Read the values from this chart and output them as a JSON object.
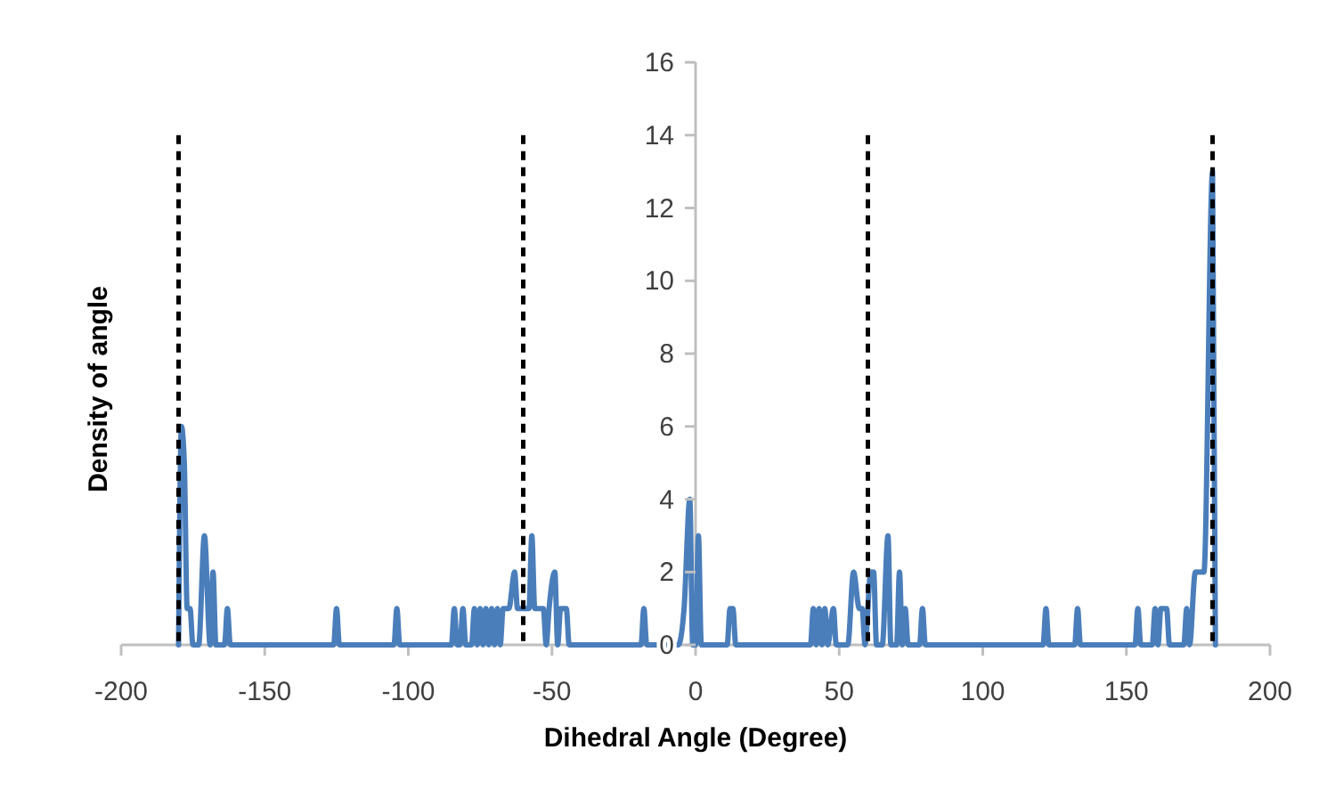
{
  "chart_data": {
    "type": "line",
    "xlabel": "Dihedral Angle (Degree)",
    "ylabel": "Density of angle",
    "xlim": [
      -200,
      200
    ],
    "xticks": [
      -200,
      -150,
      -100,
      -50,
      0,
      50,
      100,
      150,
      200
    ],
    "ylim": [
      0,
      16
    ],
    "yticks": [
      0,
      2,
      4,
      6,
      8,
      10,
      12,
      14,
      16
    ],
    "grid": false,
    "marker": "none",
    "line_style": "solid",
    "series": [
      {
        "color": "#4a7ebb",
        "x": [
          -180,
          -179,
          -178,
          -177,
          -176,
          -175,
          -173,
          -171,
          -169,
          -168,
          -167,
          -164,
          -163,
          -162,
          -126,
          -125,
          -124,
          -105,
          -104,
          -103,
          -85,
          -84,
          -83,
          -82,
          -81,
          -80,
          -78,
          -77,
          -76,
          -75,
          -74,
          -73,
          -72,
          -71,
          -70,
          -69,
          -68,
          -67,
          -66,
          -65,
          -63,
          -62,
          -60,
          -58,
          -57,
          -56,
          -53,
          -52,
          -51,
          -49,
          -48,
          -47,
          -46,
          -45,
          -44,
          -19,
          -18,
          -17,
          -6,
          -4,
          -2,
          -1,
          0,
          1,
          2,
          11,
          12,
          13,
          14,
          40,
          41,
          42,
          43,
          44,
          45,
          46,
          48,
          49,
          53,
          55,
          57,
          58,
          59,
          61,
          62,
          63,
          65,
          67,
          68,
          70,
          71,
          72,
          73,
          74,
          78,
          79,
          80,
          121,
          122,
          123,
          132,
          133,
          134,
          153,
          154,
          155,
          159,
          160,
          161,
          162,
          164,
          165,
          170,
          171,
          172,
          174,
          176,
          177,
          180,
          181
        ],
        "values": [
          0,
          6,
          5,
          1,
          1,
          0,
          0,
          3,
          0,
          2,
          0,
          0,
          1,
          0,
          0,
          1,
          0,
          0,
          1,
          0,
          0,
          1,
          0,
          0,
          1,
          0,
          0,
          1,
          0,
          1,
          0,
          1,
          0,
          1,
          0,
          1,
          0,
          1,
          1,
          1,
          2,
          1,
          1,
          1,
          3,
          1,
          1,
          0,
          1,
          2,
          0,
          1,
          1,
          1,
          0,
          0,
          1,
          0,
          0,
          1,
          4,
          0,
          0,
          3,
          0,
          0,
          1,
          1,
          0,
          0,
          1,
          0,
          1,
          0,
          1,
          0,
          1,
          0,
          0,
          2,
          1,
          1,
          0,
          2,
          2,
          0,
          0,
          3,
          0,
          0,
          2,
          0,
          1,
          0,
          0,
          1,
          0,
          0,
          1,
          0,
          0,
          1,
          0,
          0,
          1,
          0,
          0,
          1,
          0,
          1,
          1,
          0,
          0,
          1,
          0,
          2,
          2,
          2,
          13,
          0
        ]
      }
    ],
    "ref_lines": [
      {
        "axis": "x",
        "value": -180,
        "color": "#000000",
        "line_style": "dashed"
      },
      {
        "axis": "x",
        "value": -60,
        "color": "#000000",
        "line_style": "dashed"
      },
      {
        "axis": "x",
        "value": 60,
        "color": "#000000",
        "line_style": "dashed"
      },
      {
        "axis": "x",
        "value": 180,
        "color": "#000000",
        "line_style": "dashed"
      }
    ]
  }
}
